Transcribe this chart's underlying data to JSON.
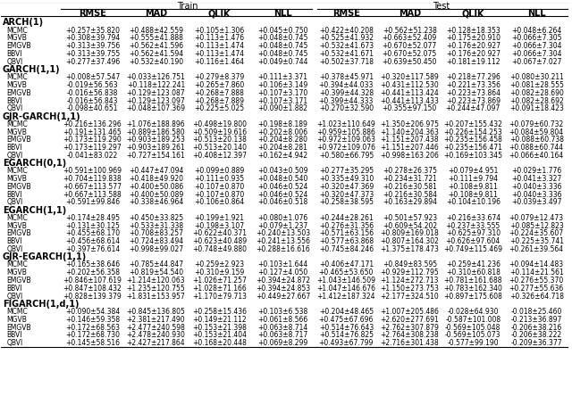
{
  "col_groups": [
    {
      "label": "Train",
      "cols": [
        "RMSE",
        "MAD",
        "QLIK",
        "NLL"
      ]
    },
    {
      "label": "Test",
      "cols": [
        "RMSE",
        "MAD",
        "QLIK",
        "NLL"
      ]
    }
  ],
  "sections": [
    {
      "header": "ARCH(1)",
      "rows": [
        [
          "MCMC",
          "+0.257±35.820",
          "+0.488±42.559",
          "+0.105±1.306",
          "+0.045±0.750",
          "+0.422±40.208",
          "+0.562±51.238",
          "+0.128±18.353",
          "+0.048±6.264"
        ],
        [
          "MGVB",
          "+0.308±39.794",
          "+0.555±41.888",
          "+0.113±1.476",
          "+0.048±0.745",
          "+0.525±41.932",
          "+0.663±52.409",
          "+0.175±20.910",
          "+0.066±7.305"
        ],
        [
          "EMGVB",
          "+0.313±39.756",
          "+0.562±41.596",
          "+0.113±1.474",
          "+0.048±0.745",
          "+0.532±41.673",
          "+0.670±52.077",
          "+0.176±20.927",
          "+0.066±7.304"
        ],
        [
          "BBVI",
          "+0.313±39.755",
          "+0.562±41.594",
          "+0.113±1.474",
          "+0.048±0.745",
          "+0.532±41.671",
          "+0.670±52.075",
          "+0.176±20.927",
          "+0.066±7.304"
        ],
        [
          "QBVI",
          "+0.277±37.496",
          "+0.532±40.190",
          "+0.116±1.464",
          "+0.049±0.744",
          "+0.502±37.718",
          "+0.639±50.450",
          "+0.181±19.112",
          "+0.067±7.027"
        ]
      ]
    },
    {
      "header": "GARCH(1,1)",
      "rows": [
        [
          "MCMC",
          "+0.008±57.547",
          "+0.033±126.751",
          "+0.279±8.379",
          "+0.111±3.371",
          "+0.378±45.971",
          "+0.320±117.589",
          "+0.218±77.296",
          "+0.080±30.211"
        ],
        [
          "MGVB",
          "-0.019±56.563",
          "+0.118±122.241",
          "+0.265±7.860",
          "+0.106±3.149",
          "+0.394±44.033",
          "+0.431±112.530",
          "+0.221±73.356",
          "+0.081±28.555"
        ],
        [
          "EMGVB",
          "-0.016±56.838",
          "+0.129±123.087",
          "+0.268±7.888",
          "+0.107±3.170",
          "+0.399±44.328",
          "+0.441±113.424",
          "+0.223±73.864",
          "+0.082±28.690"
        ],
        [
          "BBVI",
          "-0.016±56.843",
          "+0.129±123.097",
          "+0.268±7.889",
          "+0.107±3.171",
          "+0.399±44.333",
          "+0.441±113.433",
          "+0.223±73.869",
          "+0.082±28.692"
        ],
        [
          "QBVI",
          "-0.098±40.651",
          "+0.048±107.369",
          "+0.225±5.025",
          "+0.090±1.882",
          "+0.270±32.590",
          "+0.355±97.150",
          "+0.244±47.097",
          "+0.091±18.423"
        ]
      ]
    },
    {
      "header": "GJR-GARCH(1,1)",
      "rows": [
        [
          "MCMC",
          "+0.216±136.296",
          "+1.076±188.896",
          "+0.498±19.800",
          "+0.198±8.189",
          "+1.023±110.649",
          "+1.350±206.975",
          "+0.207±155.432",
          "+0.079±60.732"
        ],
        [
          "MGVB",
          "+0.191±131.465",
          "+0.889±186.580",
          "+0.509±19.616",
          "+0.202±8.006",
          "+0.959±105.886",
          "+1.140±204.363",
          "+0.226±154.253",
          "+0.084±59.804"
        ],
        [
          "EMGVB",
          "+0.173±119.290",
          "+0.903±189.253",
          "+0.513±20.138",
          "+0.204±8.280",
          "+0.972±109.063",
          "+1.151±207.438",
          "+0.235±156.458",
          "+0.088±60.738"
        ],
        [
          "BBVI",
          "+0.173±119.297",
          "+0.903±189.261",
          "+0.513±20.140",
          "+0.204±8.281",
          "+0.972±109.076",
          "+1.151±207.446",
          "+0.235±156.471",
          "+0.088±60.744"
        ],
        [
          "QBVI",
          "-0.041±83.022",
          "+0.727±154.161",
          "+0.408±12.397",
          "+0.162±4.942",
          "+0.580±66.795",
          "+0.998±163.206",
          "+0.169±103.345",
          "+0.066±40.164"
        ]
      ]
    },
    {
      "header": "EGARCH(0,1)",
      "rows": [
        [
          "MCMC",
          "+0.591±100.969",
          "+0.447±47.094",
          "+0.099±0.889",
          "+0.043±0.509",
          "+0.277±35.295",
          "+0.278±26.375",
          "+0.079±4.951",
          "+0.029±1.776"
        ],
        [
          "MGVB",
          "+0.704±119.838",
          "+0.418±49.920",
          "+0.111±0.935",
          "+0.048±0.540",
          "+0.335±49.310",
          "+0.234±31.721",
          "+0.111±9.794",
          "+0.041±3.327"
        ],
        [
          "EMGVB",
          "+0.667±113.577",
          "+0.400±50.086",
          "+0.107±0.870",
          "+0.046±0.524",
          "+0.320±47.369",
          "+0.216±30.581",
          "+0.108±9.811",
          "+0.040±3.336"
        ],
        [
          "BBVI",
          "+0.667±113.588",
          "+0.400±50.089",
          "+0.107±0.870",
          "+0.046±0.524",
          "+0.320±47.373",
          "+0.216±30.584",
          "+0.108±9.811",
          "+0.040±3.336"
        ],
        [
          "QBVI",
          "+0.591±99.846",
          "+0.338±46.964",
          "+0.106±0.864",
          "+0.046±0.518",
          "+0.258±38.595",
          "+0.163±29.894",
          "+0.104±10.196",
          "+0.039±3.497"
        ]
      ]
    },
    {
      "header": "EGARCH(1,1)",
      "rows": [
        [
          "MCMC",
          "+0.174±28.495",
          "+0.450±33.825",
          "+0.199±1.921",
          "+0.080±1.076",
          "+0.244±28.261",
          "+0.501±57.923",
          "+0.216±33.674",
          "+0.079±12.473"
        ],
        [
          "MGVB",
          "+0.131±30.125",
          "+0.533±31.338",
          "+0.198±3.107",
          "+0.079±1.237",
          "+0.276±31.356",
          "+0.609±54.202",
          "+0.237±33.555",
          "+0.085±12.823"
        ],
        [
          "EMGVB",
          "+0.455±68.170",
          "+0.708±83.257",
          "+0.622±40.371",
          "+0.240±13.503",
          "+0.571±63.156",
          "+0.809±169.018",
          "+0.625±97.310",
          "+0.224±35.607"
        ],
        [
          "BBVI",
          "+0.456±68.614",
          "+0.724±83.494",
          "+0.623±40.489",
          "+0.241±13.556",
          "+0.577±63.868",
          "+0.807±164.302",
          "+0.626±97.604",
          "+0.225±35.741"
        ],
        [
          "QBVI",
          "+0.397±76.614",
          "+0.998±99.027",
          "+0.748±49.880",
          "+0.288±16.616",
          "+0.745±84.246",
          "+1.375±178.473",
          "+0.749±115.469",
          "+0.261±39.564"
        ]
      ]
    },
    {
      "header": "GJR-EGARCH(1,1)",
      "rows": [
        [
          "MCMC",
          "+0.165±38.646",
          "+0.785±44.847",
          "+0.259±2.923",
          "+0.103±1.644",
          "+0.406±47.171",
          "+0.849±83.595",
          "+0.259±41.236",
          "+0.094±14.483"
        ],
        [
          "MGVB",
          "+0.202±56.358",
          "+0.819±54.540",
          "+0.310±9.159",
          "+0.127±4.050",
          "+0.465±53.650",
          "+0.929±112.795",
          "+0.310±60.818",
          "+0.114±21.561"
        ],
        [
          "EMGVB",
          "+0.846±107.619",
          "+1.214±120.063",
          "+1.026±71.257",
          "+0.394±24.872",
          "+1.043±146.509",
          "+1.124±272.713",
          "+0.781±161.688",
          "+0.276±55.370"
        ],
        [
          "BBVI",
          "+0.847±108.432",
          "+1.235±120.755",
          "+1.028±71.166",
          "+0.394±24.853",
          "+1.047±146.676",
          "+1.150±273.753",
          "+0.783±162.340",
          "+0.277±55.636"
        ],
        [
          "QBVI",
          "+0.828±139.379",
          "+1.831±153.957",
          "+1.170±79.713",
          "+0.449±27.667",
          "+1.412±187.324",
          "+2.177±324.510",
          "+0.897±175.608",
          "+0.326±64.718"
        ]
      ]
    },
    {
      "header": "FIGARCH(1,d,1)",
      "rows": [
        [
          "MCMC",
          "+0.090±54.384",
          "+0.845±136.805",
          "+0.258±15.436",
          "+0.103±6.538",
          "+0.204±48.465",
          "+1.007±205.486",
          "-0.028±64.930",
          "-0.018±25.460"
        ],
        [
          "MGVB",
          "+0.146±59.358",
          "+2.381±217.490",
          "+0.149±21.112",
          "+0.061±8.566",
          "+0.475±67.696",
          "+2.620±277.691",
          "-0.587±101.008",
          "-0.213±36.897"
        ],
        [
          "EMGVB",
          "+0.172±68.563",
          "+2.477±240.598",
          "+0.153±21.398",
          "+0.063±8.714",
          "+0.514±76.643",
          "+2.762±307.879",
          "-0.569±105.048",
          "-0.206±38.216"
        ],
        [
          "BBVI",
          "+0.172±68.730",
          "+2.478±240.930",
          "+0.153±21.404",
          "+0.063±8.717",
          "+0.514±76.825",
          "+2.764±308.238",
          "-0.569±105.073",
          "-0.206±38.222"
        ],
        [
          "QBVI",
          "+0.145±58.516",
          "+2.427±217.864",
          "+0.168±20.448",
          "+0.069±8.299",
          "+0.493±67.799",
          "+2.716±301.438",
          "-0.577±99.190",
          "-0.209±36.377"
        ]
      ]
    }
  ],
  "bg_color": "#ffffff",
  "font_size": 5.5,
  "header_font_size": 7.0,
  "section_font_size": 7.0
}
